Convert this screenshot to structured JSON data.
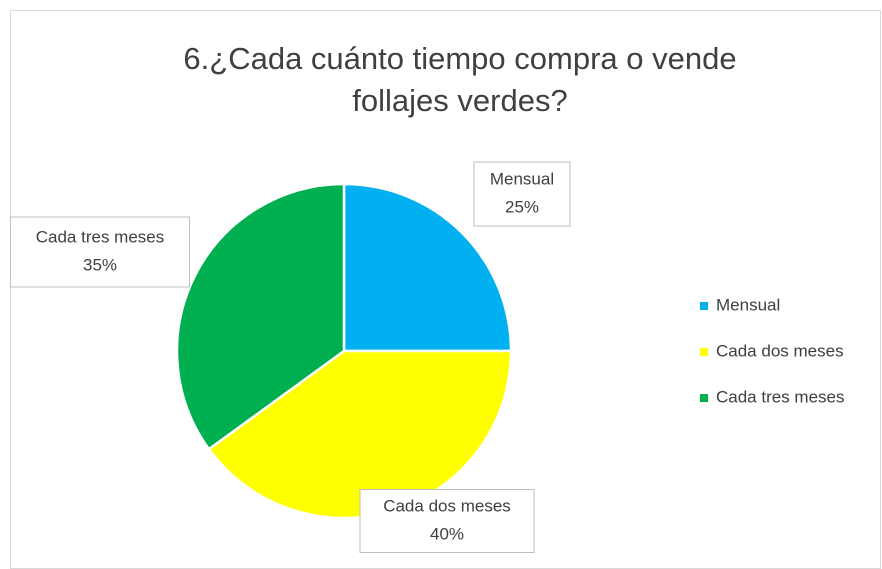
{
  "chart_data": {
    "type": "pie",
    "title": "6.¿Cada cuánto tiempo compra o vende follajes verdes?",
    "categories": [
      "Mensual",
      "Cada dos meses",
      "Cada tres meses"
    ],
    "values": [
      25,
      40,
      35
    ],
    "value_labels": [
      "25%",
      "40%",
      "35%"
    ],
    "colors": [
      "#00b0f0",
      "#ffff00",
      "#00b050"
    ],
    "legend": "right"
  }
}
